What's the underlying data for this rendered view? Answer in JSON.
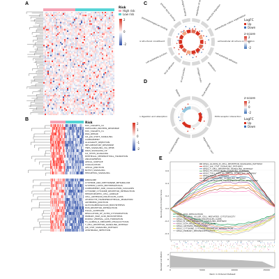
{
  "panels": {
    "A": {
      "label": "A",
      "legend_title": "Risk",
      "legend_groups": [
        "High risk",
        "Low risk"
      ],
      "scale_ticks": [
        "2",
        "0",
        "-2"
      ],
      "colors": {
        "high": "#f5a3b5",
        "low": "#56d4d6",
        "hot": "#d7301f",
        "cold": "#3050a8"
      }
    },
    "B": {
      "label": "B",
      "legend_title": "Risk",
      "scale_ticks": [
        "2",
        "1",
        "0",
        "-1",
        "-2"
      ],
      "top_rows": [
        "MYC_TARGETS_V2",
        "UNFOLDED_PROTEIN_RESPONSE",
        "MYC_TARGETS_V1",
        "DNA_REPAIR",
        "IL6_JAK_STAT3_SIGNALING",
        "COMPLEMENT",
        "ALLOGRAFT_REJECTION",
        "INFLAMMATORY_RESPONSE",
        "TNFA_SIGNALING_VIA_NFKB",
        "KRAS_SIGNALING_UP",
        "IL2_STAT5_SIGNALING",
        "EPITHELIAL_MESENCHYMAL_TRANSITION",
        "ANGIOGENESIS",
        "APICAL_SURFACE",
        "COAGULATION",
        "APICAL_JUNCTION",
        "NOTCH_SIGNALING",
        "HEDGEHOG_SIGNALING"
      ],
      "bottom_rows": [
        "RIBOSOME",
        "CYSTEINE_AND_METHIONINE_METABOLISM",
        "SYSTEMIC_LUPUS_ERYTHEMATOSUS",
        "COMPLEMENT_AND_COAGULATION_CASCADES",
        "CYTOKINE_CYTOKINE_RECEPTOR_INTERACTION",
        "HEMATOPOIETIC_CELL_LINEAGE",
        "CELL_ADHESION_MOLECULES_CAMS",
        "LEUKOCYTE_TRANSENDOTHELIAL_MIGRATION",
        "ADHERENS_JUNCTION",
        "GLYCOSAMINOGLYCAN_BIOSYNTHESIS",
        "ECM_RECEPTOR_INTERACTION",
        "FOCAL_ADHESION",
        "REGULATION_OF_ACTIN_CYTOSKELETON",
        "PRIMARY_BILE_ACID_BIOSYNTHESIS",
        "DORSO_VENTRAL_AXIS_FORMATION",
        "FC_GAMMA_R_MEDIATED_PHAGOCYTOSIS",
        "T_CELL_RECEPTOR_SIGNALING_PATHWAY",
        "JAK_STAT_SIGNALING_PATHWAY",
        "LEISHMANIA_INFECTION"
      ]
    },
    "C": {
      "label": "C",
      "legend_logfc": "LogFC",
      "legend_up": "Up",
      "legend_down": "Down",
      "legend_z": "z-score",
      "z_ticks": [
        "-2",
        "0",
        "2"
      ],
      "terms": [
        "regulation of cell growth",
        "leukocyte migration",
        "extracellular matrix organization",
        "extracellular structure organization",
        "cell-substrate adhesion",
        "ossification",
        "collagen-containing extracellular matrix",
        "cell-cell junction",
        "focal adhesion",
        "cell-substrate junction",
        "extracellular matrix structural constituent",
        "glycosaminoglycan binding",
        "growth factor binding",
        "integrin binding"
      ]
    },
    "D": {
      "label": "D",
      "legend_logfc": "LogFC",
      "legend_up": "Up",
      "legend_down": "Down",
      "legend_z": "z-score",
      "z_ticks": [
        "-2",
        "0",
        "2"
      ],
      "terms": [
        "Focal adhesion",
        "ECM-receptor interaction",
        "Hypertrophic cardiomyopathy",
        "Dilated cardiomyopathy",
        "Protein digestion and absorption",
        "Malaria"
      ]
    },
    "E": {
      "label": "E",
      "y_label_top": "Running Enrichment Score",
      "y_label_bottom": "Ranked List Metric",
      "x_label": "Rank in Ordered Dataset",
      "x_ticks": [
        "0",
        "5000",
        "10000",
        "15000"
      ],
      "y_ticks_top": [
        "0.6",
        "0.4",
        "0.2",
        "0.0",
        "-0.2",
        "-0.4"
      ],
      "y_ticks_bottom": [
        "2",
        "0",
        "-2"
      ],
      "legend_top": [
        "KEGG_GLIOMA_B_CELL_RECEPTOR_SIGNALING_PATHWAY",
        "KEGG_JAK_STAT_SIGNALING_PATHWAY",
        "KEGG_T_CELL_RECEPTOR_SIGNALING_PATHWAY",
        "KEGG_FC_EPSILON_RI_SIGNALING_PATHWAY",
        "KEGG_TOLL_LIKE_RECEPTOR_SIGNALING_PATHWAY",
        "KEGG_FOCAL_ADHESION",
        "KEGG_CHEMOKINE_SIGNALING_PATHWAY",
        "KEGG_LEUKOCYTE_TRANSENDOTHELIAL_MIGRATION"
      ],
      "legend_bottom": [
        "KEGG_DNA_REPLICATION",
        "KEGG_NATURAL_KILLER_CELL_MEDIATED_CYTOTOXICITY",
        "KEGG_CELL_ADHESION_MOLECULES_CAMS",
        "KEGG_B_CELL_RECEPTOR_SIGNALING_PATHWAY",
        "KEGG_ECM_RECEPTOR_INTERACTION",
        "KEGG_ANTIGEN_PROCESSING",
        "KEGG_CYTOKINE_CYTOKINE_RECEPTOR_INTERACTION",
        "KEGG_PRIMARY_IMMUNODEFICIENCY"
      ],
      "curve_colors": [
        "#1b1b1b",
        "#e41a1c",
        "#377eb8",
        "#4daf4a",
        "#984ea3",
        "#ff7f00",
        "#a65628",
        "#f781bf",
        "#1a9850",
        "#66c2a5",
        "#fc8d62",
        "#8da0cb",
        "#e78ac3",
        "#a6d854",
        "#ffd92f",
        "#b3b3b3"
      ]
    }
  }
}
